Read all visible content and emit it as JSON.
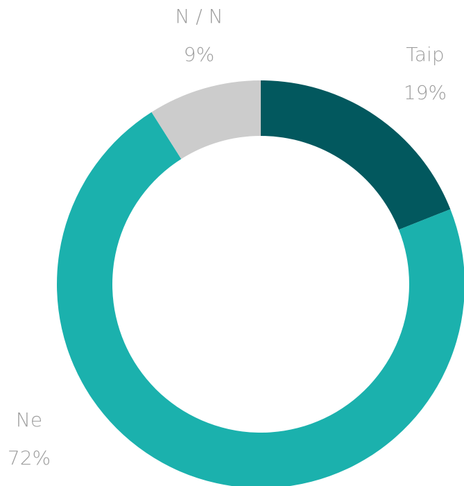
{
  "chart_data": {
    "type": "donut",
    "categories": [
      "Taip",
      "Ne",
      "N / N"
    ],
    "values": [
      19,
      72,
      9
    ],
    "value_labels": [
      "19%",
      "72%",
      "9%"
    ],
    "colors": [
      "#02585e",
      "#1bb1ad",
      "#cccccc"
    ]
  }
}
